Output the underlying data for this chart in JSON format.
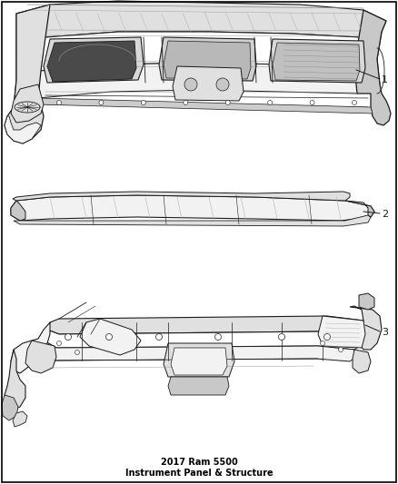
{
  "title": "2017 Ram 5500\nInstrument Panel & Structure",
  "background_color": "#ffffff",
  "fig_width": 4.38,
  "fig_height": 5.33,
  "dpi": 100,
  "label_1": "1",
  "label_2": "2",
  "label_3": "3",
  "ec": "#1a1a1a",
  "fc_white": "#ffffff",
  "fc_light": "#f2f2f2",
  "fc_mid": "#e0e0e0",
  "fc_dark": "#c8c8c8",
  "lw_thick": 1.2,
  "lw_med": 0.7,
  "lw_thin": 0.4,
  "font_size_label": 8,
  "font_size_title": 7,
  "border_color": "#000000"
}
